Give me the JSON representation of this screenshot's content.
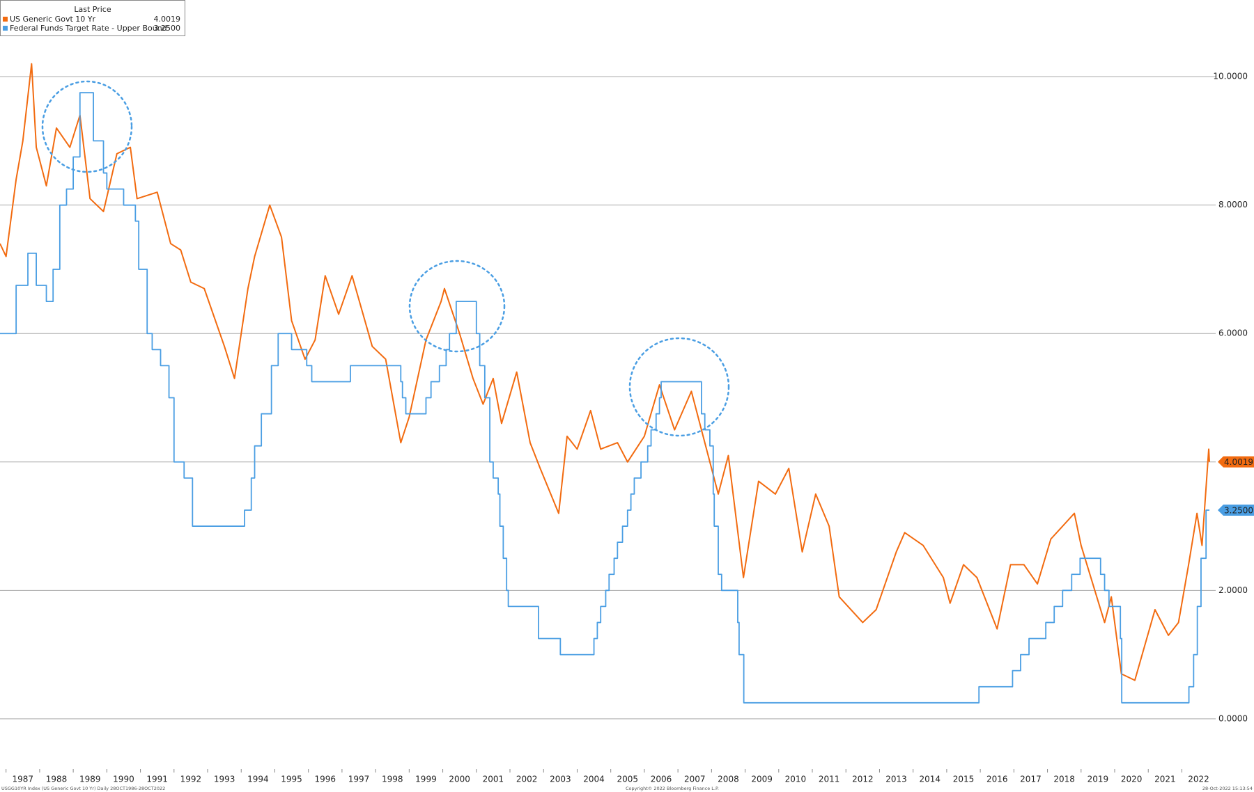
{
  "chart_data": {
    "type": "line",
    "legend_title": "Last Price",
    "footer_left": "USGG10YR Index (US Generic Govt 10 Yr)  Daily 28OCT1986-28OCT2022",
    "footer_center": "Copyright© 2022 Bloomberg Finance L.P.",
    "footer_right": "28-Oct-2022 15:13:54",
    "xlim": [
      1986.82,
      2022.82
    ],
    "xticks": [
      1987,
      1988,
      1989,
      1990,
      1991,
      1992,
      1993,
      1994,
      1995,
      1996,
      1997,
      1998,
      1999,
      2000,
      2001,
      2002,
      2003,
      2004,
      2005,
      2006,
      2007,
      2008,
      2009,
      2010,
      2011,
      2012,
      2013,
      2014,
      2015,
      2016,
      2017,
      2018,
      2019,
      2020,
      2021,
      2022
    ],
    "ylim": [
      -0.5,
      10.5
    ],
    "yticks": [
      {
        "value": 0,
        "label": "0.0000"
      },
      {
        "value": 2,
        "label": "2.0000"
      },
      {
        "value": 4,
        "label": "4.0000"
      },
      {
        "value": 6,
        "label": "6.0000"
      },
      {
        "value": 8,
        "label": "8.0000"
      },
      {
        "value": 10,
        "label": "10.0000"
      }
    ],
    "grid": true,
    "legend": "top-left",
    "series": [
      {
        "name": "US Generic Govt 10 Yr",
        "color": "#f26b10",
        "step": false,
        "last_price": 4.0019,
        "x": [
          1986.82,
          1987.0,
          1987.3,
          1987.5,
          1987.76,
          1987.9,
          1988.2,
          1988.5,
          1988.9,
          1989.2,
          1989.5,
          1989.9,
          1990.3,
          1990.7,
          1990.9,
          1991.5,
          1991.9,
          1992.2,
          1992.5,
          1992.9,
          1993.5,
          1993.8,
          1994.2,
          1994.4,
          1994.85,
          1995.2,
          1995.5,
          1995.9,
          1996.2,
          1996.5,
          1996.9,
          1997.3,
          1997.9,
          1998.3,
          1998.75,
          1999.0,
          1999.5,
          1999.95,
          2000.05,
          2000.5,
          2000.9,
          2001.2,
          2001.5,
          2001.75,
          2002.2,
          2002.6,
          2002.9,
          2003.45,
          2003.7,
          2004.0,
          2004.4,
          2004.7,
          2005.2,
          2005.5,
          2006.0,
          2006.45,
          2006.9,
          2007.4,
          2007.9,
          2008.2,
          2008.5,
          2008.95,
          2009.4,
          2009.9,
          2010.3,
          2010.7,
          2011.1,
          2011.5,
          2011.8,
          2012.5,
          2012.9,
          2013.5,
          2013.75,
          2014.3,
          2014.9,
          2015.1,
          2015.5,
          2015.9,
          2016.5,
          2016.9,
          2017.3,
          2017.7,
          2018.1,
          2018.8,
          2019.0,
          2019.7,
          2019.9,
          2020.2,
          2020.6,
          2021.2,
          2021.6,
          2021.9,
          2022.2,
          2022.45,
          2022.6,
          2022.8,
          2022.82
        ],
        "values": [
          7.4,
          7.2,
          8.4,
          9.0,
          10.2,
          8.9,
          8.3,
          9.2,
          8.9,
          9.4,
          8.1,
          7.9,
          8.8,
          8.9,
          8.1,
          8.2,
          7.4,
          7.3,
          6.8,
          6.7,
          5.8,
          5.3,
          6.7,
          7.2,
          8.0,
          7.5,
          6.2,
          5.6,
          5.9,
          6.9,
          6.3,
          6.9,
          5.8,
          5.6,
          4.3,
          4.7,
          5.9,
          6.5,
          6.7,
          6.0,
          5.3,
          4.9,
          5.3,
          4.6,
          5.4,
          4.3,
          3.9,
          3.2,
          4.4,
          4.2,
          4.8,
          4.2,
          4.3,
          4.0,
          4.4,
          5.2,
          4.5,
          5.1,
          4.1,
          3.5,
          4.1,
          2.2,
          3.7,
          3.5,
          3.9,
          2.6,
          3.5,
          3.0,
          1.9,
          1.5,
          1.7,
          2.6,
          2.9,
          2.7,
          2.2,
          1.8,
          2.4,
          2.2,
          1.4,
          2.4,
          2.4,
          2.1,
          2.8,
          3.2,
          2.7,
          1.5,
          1.9,
          0.7,
          0.6,
          1.7,
          1.3,
          1.5,
          2.4,
          3.2,
          2.7,
          4.2,
          4.0019
        ]
      },
      {
        "name": "Federal Funds Target Rate - Upper Bound",
        "color": "#4a9ee3",
        "step": true,
        "last_price": {
          "value": 3.25,
          "label": "3.2500"
        },
        "x": [
          1986.82,
          1987.3,
          1987.65,
          1987.9,
          1988.2,
          1988.4,
          1988.6,
          1988.8,
          1989.0,
          1989.2,
          1989.6,
          1989.9,
          1990.0,
          1990.5,
          1990.85,
          1990.95,
          1991.2,
          1991.35,
          1991.6,
          1991.85,
          1992.0,
          1992.3,
          1992.55,
          1994.1,
          1994.3,
          1994.4,
          1994.6,
          1994.9,
          1995.1,
          1995.5,
          1995.95,
          1996.1,
          1997.25,
          1998.75,
          1998.8,
          1998.9,
          1999.5,
          1999.65,
          1999.9,
          2000.1,
          2000.2,
          2000.4,
          2001.0,
          2001.1,
          2001.25,
          2001.4,
          2001.5,
          2001.65,
          2001.7,
          2001.8,
          2001.9,
          2001.95,
          2002.85,
          2003.5,
          2004.5,
          2004.6,
          2004.7,
          2004.85,
          2004.95,
          2005.1,
          2005.2,
          2005.35,
          2005.5,
          2005.6,
          2005.7,
          2005.9,
          2006.1,
          2006.2,
          2006.35,
          2006.45,
          2006.5,
          2007.7,
          2007.8,
          2007.95,
          2008.05,
          2008.08,
          2008.2,
          2008.3,
          2008.78,
          2008.82,
          2008.96,
          2015.96,
          2016.96,
          2017.2,
          2017.45,
          2017.95,
          2018.2,
          2018.45,
          2018.72,
          2018.97,
          2019.58,
          2019.7,
          2019.83,
          2020.17,
          2020.21,
          2022.21,
          2022.35,
          2022.46,
          2022.57,
          2022.72,
          2022.82
        ],
        "values": [
          6.0,
          6.75,
          7.25,
          6.75,
          6.5,
          7.0,
          8.0,
          8.25,
          8.75,
          9.75,
          9.0,
          8.5,
          8.25,
          8.0,
          7.75,
          7.0,
          6.0,
          5.75,
          5.5,
          5.0,
          4.0,
          3.75,
          3.0,
          3.25,
          3.75,
          4.25,
          4.75,
          5.5,
          6.0,
          5.75,
          5.5,
          5.25,
          5.5,
          5.25,
          5.0,
          4.75,
          5.0,
          5.25,
          5.5,
          5.75,
          6.0,
          6.5,
          6.0,
          5.5,
          5.0,
          4.0,
          3.75,
          3.5,
          3.0,
          2.5,
          2.0,
          1.75,
          1.25,
          1.0,
          1.25,
          1.5,
          1.75,
          2.0,
          2.25,
          2.5,
          2.75,
          3.0,
          3.25,
          3.5,
          3.75,
          4.0,
          4.25,
          4.5,
          4.75,
          5.0,
          5.25,
          4.75,
          4.5,
          4.25,
          3.5,
          3.0,
          2.25,
          2.0,
          1.5,
          1.0,
          0.25,
          0.5,
          0.75,
          1.0,
          1.25,
          1.5,
          1.75,
          2.0,
          2.25,
          2.5,
          2.25,
          2.0,
          1.75,
          1.25,
          0.25,
          0.5,
          1.0,
          1.75,
          2.5,
          3.25,
          3.25
        ]
      }
    ]
  }
}
